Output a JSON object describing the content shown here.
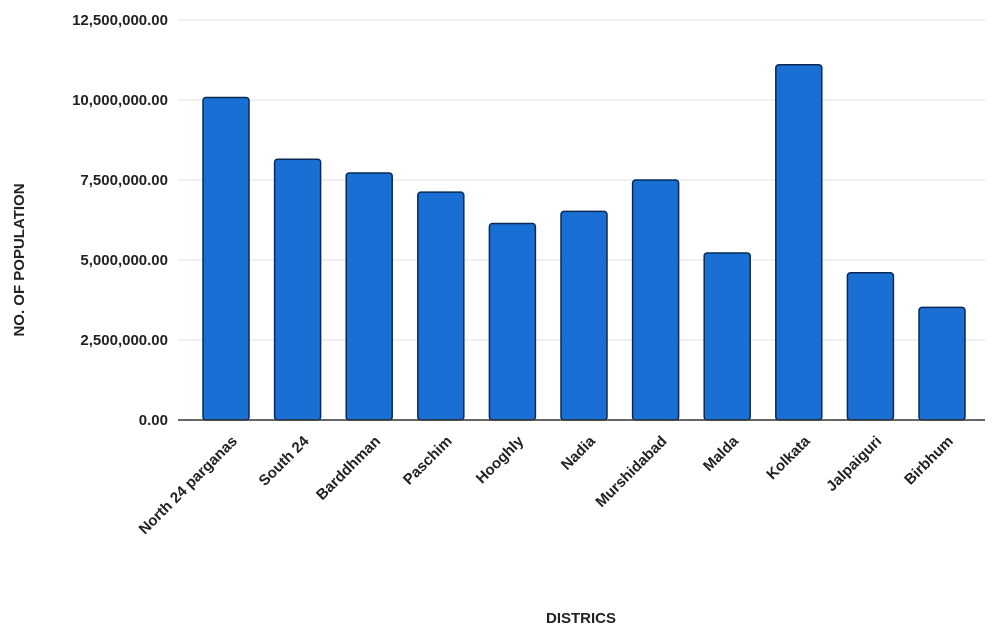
{
  "chart_data": {
    "type": "bar",
    "title": "",
    "xlabel": "DISTRICS",
    "ylabel": "NO. OF POPULATION",
    "categories": [
      "North 24 parganas",
      "South 24",
      "Barddhman",
      "Paschim",
      "Hooghly",
      "Nadia",
      "Murshidabad",
      "Malda",
      "Kolkata",
      "Jalpaiguri",
      "Birbhum"
    ],
    "values": [
      10080000,
      8150000,
      7720000,
      7120000,
      6140000,
      6520000,
      7500000,
      5220000,
      11100000,
      4600000,
      3520000
    ],
    "ylim": [
      0,
      12500000
    ],
    "yticks": [
      "0.00",
      "2,500,000.00",
      "5,000,000.00",
      "7,500,000.00",
      "10,000,000.00",
      "12,500,000.00"
    ],
    "ytick_values": [
      0,
      2500000,
      5000000,
      7500000,
      10000000,
      12500000
    ],
    "grid": true,
    "legend": "none",
    "bar_color": "#1a6fd4",
    "bar_edge_color": "#0a2a55"
  }
}
